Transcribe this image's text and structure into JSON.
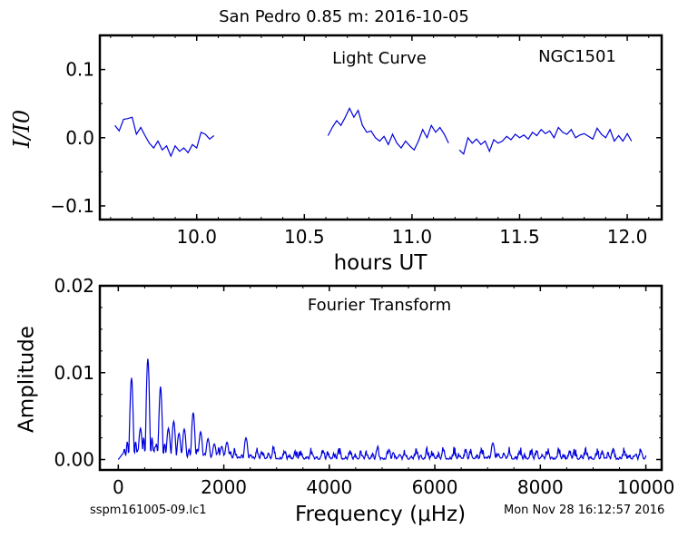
{
  "suptitle": "San Pedro 0.85 m:  2016-10-05",
  "footer": {
    "left": "sspm161005-09.lc1",
    "right": "Mon Nov 28 16:12:57 2016"
  },
  "colors": {
    "line": "#0000dd",
    "axes": "#000000"
  },
  "chart_data": [
    {
      "type": "line",
      "title": "",
      "panel_labels": [
        "Light Curve",
        "NGC1501"
      ],
      "xlabel": "hours UT",
      "ylabel": "I/I0",
      "xlim": [
        9.55,
        12.16
      ],
      "ylim": [
        -0.12,
        0.15
      ],
      "xticks": [
        10.0,
        10.5,
        11.0,
        11.5,
        12.0
      ],
      "xtick_labels": [
        "10.0",
        "10.5",
        "11.0",
        "11.5",
        "12.0"
      ],
      "yticks": [
        -0.1,
        0.0,
        0.1
      ],
      "ytick_labels": [
        "−0.1",
        "0.0",
        "0.1"
      ],
      "grid": false,
      "series": [
        {
          "x": [
            9.62,
            9.64,
            9.66,
            9.68,
            9.7,
            9.72,
            9.74,
            9.76,
            9.78,
            9.8,
            9.82,
            9.84,
            9.86,
            9.88,
            9.9,
            9.92,
            9.94,
            9.96,
            9.98,
            10.0,
            10.02,
            10.04,
            10.06,
            10.08
          ],
          "y": [
            0.018,
            0.01,
            0.027,
            0.028,
            0.03,
            0.005,
            0.015,
            0.003,
            -0.008,
            -0.015,
            -0.005,
            -0.018,
            -0.012,
            -0.027,
            -0.012,
            -0.02,
            -0.015,
            -0.022,
            -0.01,
            -0.015,
            0.008,
            0.005,
            -0.002,
            0.003
          ]
        },
        {
          "x": [
            10.61,
            10.63,
            10.65,
            10.67,
            10.69,
            10.71,
            10.73,
            10.75,
            10.77,
            10.79,
            10.81,
            10.83,
            10.85,
            10.87,
            10.89,
            10.91,
            10.93,
            10.95,
            10.97,
            10.99,
            11.01,
            11.03,
            11.05,
            11.07,
            11.09,
            11.11,
            11.13,
            11.15,
            11.17
          ],
          "y": [
            0.003,
            0.015,
            0.025,
            0.018,
            0.03,
            0.043,
            0.03,
            0.04,
            0.018,
            0.008,
            0.01,
            0.0,
            -0.005,
            0.002,
            -0.01,
            0.005,
            -0.008,
            -0.015,
            -0.005,
            -0.012,
            -0.018,
            -0.005,
            0.012,
            0.0,
            0.018,
            0.008,
            0.015,
            0.005,
            -0.008
          ]
        },
        {
          "x": [
            11.22,
            11.24,
            11.26,
            11.28,
            11.3,
            11.32,
            11.34,
            11.36,
            11.38,
            11.4,
            11.42,
            11.44,
            11.46,
            11.48,
            11.5,
            11.52,
            11.54,
            11.56,
            11.58,
            11.6,
            11.62,
            11.64,
            11.66,
            11.68,
            11.7,
            11.72,
            11.74,
            11.76,
            11.78,
            11.8,
            11.82,
            11.84,
            11.86,
            11.88,
            11.9,
            11.92,
            11.94,
            11.96,
            11.98,
            12.0,
            12.02
          ],
          "y": [
            -0.018,
            -0.024,
            0.0,
            -0.008,
            -0.002,
            -0.01,
            -0.005,
            -0.02,
            -0.003,
            -0.008,
            -0.005,
            0.002,
            -0.003,
            0.005,
            0.0,
            0.004,
            -0.002,
            0.008,
            0.003,
            0.012,
            0.006,
            0.01,
            0.0,
            0.015,
            0.008,
            0.005,
            0.012,
            0.0,
            0.004,
            0.006,
            0.002,
            -0.002,
            0.014,
            0.005,
            0.0,
            0.012,
            -0.005,
            0.003,
            -0.005,
            0.006,
            -0.005
          ]
        }
      ]
    },
    {
      "type": "line",
      "title": "",
      "panel_labels": [
        "Fourier Transform"
      ],
      "xlabel": "Frequency (μHz)",
      "ylabel": "Amplitude",
      "xlim": [
        -350,
        10300
      ],
      "ylim": [
        -0.0012,
        0.02
      ],
      "xticks": [
        0,
        2000,
        4000,
        6000,
        8000,
        10000
      ],
      "xtick_labels": [
        "0",
        "2000",
        "4000",
        "6000",
        "8000",
        "10000"
      ],
      "yticks": [
        0.0,
        0.01,
        0.02
      ],
      "ytick_labels": [
        "0.00",
        "0.01",
        "0.02"
      ],
      "grid": false,
      "peaks": [
        [
          250,
          0.0094
        ],
        [
          420,
          0.0036
        ],
        [
          560,
          0.0116
        ],
        [
          800,
          0.0084
        ],
        [
          950,
          0.0036
        ],
        [
          1050,
          0.0044
        ],
        [
          1150,
          0.003
        ],
        [
          1250,
          0.0035
        ],
        [
          1420,
          0.0054
        ],
        [
          1560,
          0.0032
        ],
        [
          1700,
          0.0024
        ],
        [
          1820,
          0.0018
        ],
        [
          1960,
          0.0015
        ],
        [
          2060,
          0.002
        ],
        [
          2420,
          0.0025
        ],
        [
          7100,
          0.0019
        ]
      ]
    }
  ]
}
